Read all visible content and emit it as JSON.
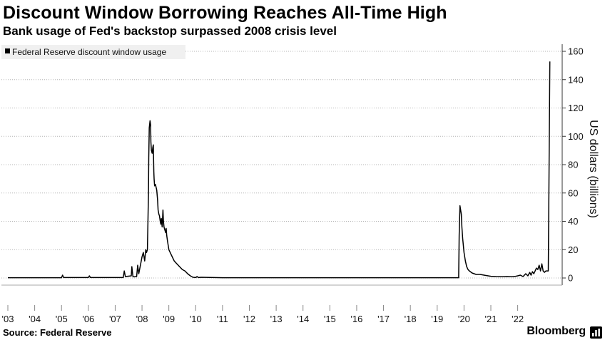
{
  "header": {
    "title": "Discount Window Borrowing Reaches All-Time High",
    "subtitle": "Bank usage of Fed's backstop surpassed 2008 crisis level"
  },
  "footer": {
    "source": "Source: Federal Reserve",
    "brand": "Bloomberg",
    "brand_icon": "stats-icon"
  },
  "colors": {
    "line": "#000000",
    "grid": "#b4b4b4",
    "legend_background": "#f0f0f0"
  },
  "chart_data": {
    "type": "line",
    "title": "Discount Window Borrowing Reaches All-Time High",
    "subtitle": "Bank usage of Fed's backstop surpassed 2008 crisis level",
    "ylabel": "US dollars (billions)",
    "ylim": [
      0,
      165
    ],
    "y_axis_position": "right",
    "yticks": [
      0,
      20,
      40,
      60,
      80,
      100,
      120,
      140,
      160
    ],
    "xlim": [
      2003.0,
      2023.3
    ],
    "xticks": [
      {
        "x": 2003.0,
        "label": "'03"
      },
      {
        "x": 2004.0,
        "label": "'04"
      },
      {
        "x": 2005.0,
        "label": "'05"
      },
      {
        "x": 2006.0,
        "label": "'06"
      },
      {
        "x": 2007.0,
        "label": "'07"
      },
      {
        "x": 2008.0,
        "label": "'08"
      },
      {
        "x": 2009.0,
        "label": "'09"
      },
      {
        "x": 2010.0,
        "label": "'10"
      },
      {
        "x": 2011.0,
        "label": "'11"
      },
      {
        "x": 2012.0,
        "label": "'12"
      },
      {
        "x": 2013.0,
        "label": "'13"
      },
      {
        "x": 2014.0,
        "label": "'14"
      },
      {
        "x": 2015.0,
        "label": "'15"
      },
      {
        "x": 2016.0,
        "label": "'16"
      },
      {
        "x": 2017.0,
        "label": "'17"
      },
      {
        "x": 2018.0,
        "label": "'18"
      },
      {
        "x": 2019.0,
        "label": "'19"
      },
      {
        "x": 2020.0,
        "label": "'20"
      },
      {
        "x": 2021.0,
        "label": "'21"
      },
      {
        "x": 2022.0,
        "label": "'22"
      }
    ],
    "grid": true,
    "legend": {
      "placement": "top-left",
      "entries": [
        "Federal Reserve discount window usage"
      ]
    },
    "series": [
      {
        "name": "Federal Reserve discount window usage",
        "x": [
          2003.0,
          2005.0,
          2005.04,
          2005.08,
          2006.0,
          2006.04,
          2006.08,
          2007.0,
          2007.3,
          2007.34,
          2007.38,
          2007.6,
          2007.62,
          2007.66,
          2007.7,
          2007.8,
          2007.84,
          2007.88,
          2007.95,
          2008.0,
          2008.05,
          2008.1,
          2008.14,
          2008.17,
          2008.2,
          2008.22,
          2008.24,
          2008.25,
          2008.27,
          2008.3,
          2008.32,
          2008.33,
          2008.35,
          2008.38,
          2008.4,
          2008.42,
          2008.44,
          2008.45,
          2008.47,
          2008.5,
          2008.55,
          2008.58,
          2008.6,
          2008.63,
          2008.65,
          2008.68,
          2008.7,
          2008.72,
          2008.75,
          2008.78,
          2008.8,
          2008.82,
          2008.85,
          2008.88,
          2008.9,
          2008.92,
          2008.95,
          2009.0,
          2009.05,
          2009.1,
          2009.15,
          2009.2,
          2009.3,
          2009.4,
          2009.5,
          2009.6,
          2009.7,
          2009.8,
          2009.9,
          2010.0,
          2010.05,
          2010.1,
          2010.2,
          2011.0,
          2019.8,
          2019.82,
          2019.85,
          2019.9,
          2019.92,
          2019.95,
          2020.0,
          2020.05,
          2020.1,
          2020.15,
          2020.2,
          2020.3,
          2020.45,
          2020.6,
          2020.8,
          2021.0,
          2021.2,
          2021.4,
          2021.6,
          2021.8,
          2021.9,
          2022.0,
          2022.1,
          2022.2,
          2022.3,
          2022.38,
          2022.45,
          2022.5,
          2022.55,
          2022.6,
          2022.65,
          2022.7,
          2022.75,
          2022.8,
          2022.85,
          2022.9,
          2022.95,
          2023.0,
          2023.05,
          2023.1,
          2023.14,
          2023.16,
          2023.2
        ],
        "values": [
          0.2,
          0.2,
          2.0,
          0.3,
          0.3,
          1.5,
          0.3,
          0.3,
          0.3,
          5.0,
          1.0,
          1.5,
          8.0,
          1.0,
          0.8,
          1.0,
          9.0,
          3.0,
          10.0,
          15.0,
          18.0,
          12.0,
          20.0,
          18.0,
          20.0,
          38.0,
          60.0,
          85.0,
          106.0,
          111.0,
          108.0,
          96.0,
          90.0,
          88.0,
          92.0,
          94.0,
          75.0,
          70.0,
          65.0,
          66.0,
          62.0,
          55.0,
          48.0,
          45.0,
          44.0,
          40.0,
          38.0,
          42.0,
          36.0,
          48.0,
          40.0,
          36.0,
          34.0,
          32.0,
          35.0,
          30.0,
          26.0,
          20.0,
          18.0,
          16.0,
          14.0,
          12.0,
          10.0,
          8.0,
          6.0,
          5.0,
          3.0,
          1.5,
          0.5,
          0.3,
          1.0,
          0.3,
          0.5,
          0.2,
          0.2,
          30.0,
          51.0,
          45.0,
          36.0,
          28.0,
          18.0,
          12.0,
          8.0,
          6.0,
          5.0,
          3.5,
          2.5,
          2.5,
          1.8,
          1.2,
          1.0,
          0.9,
          1.0,
          0.9,
          1.1,
          1.5,
          2.0,
          1.0,
          3.0,
          1.5,
          4.0,
          2.0,
          4.5,
          3.0,
          5.0,
          7.0,
          6.0,
          9.0,
          5.0,
          10.0,
          5.0,
          4.0,
          5.0,
          5.0,
          5.0,
          50.0,
          152.8
        ]
      }
    ]
  }
}
